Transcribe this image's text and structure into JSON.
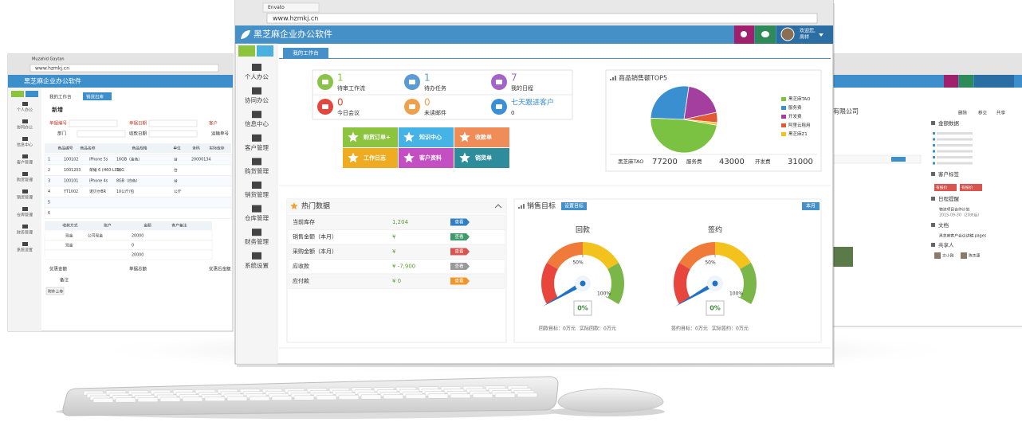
{
  "main_window": {
    "tab": "Envato",
    "url": "www.hzmkj.cn",
    "app_title": "黑芝麻企业办公软件",
    "user_greeting": "欢迎您,",
    "user_name": "周祥",
    "sidebar": [
      "个人办公",
      "协同办公",
      "信息中心",
      "客户管理",
      "购货管理",
      "销货管理",
      "仓库管理",
      "财务管理",
      "系统设置"
    ],
    "page_tab": "我的工作台",
    "stats": [
      {
        "value": 1,
        "label": "待审工作流",
        "color": "#8bc34a"
      },
      {
        "value": 1,
        "label": "待办任务",
        "color": "#5b9bd5"
      },
      {
        "value": 7,
        "label": "我的日程",
        "color": "#a463c6"
      },
      {
        "value": 0,
        "label": "今日会议",
        "color": "#e2463c"
      },
      {
        "value": 0,
        "label": "未读邮件",
        "color": "#f0a04b"
      },
      {
        "label": "七天跟进客户",
        "value": 0,
        "color": "#3a8fd6"
      }
    ],
    "shortcuts": [
      {
        "label": "购货订单+",
        "color": "#8cc43f"
      },
      {
        "label": "知识中心",
        "color": "#46b3e6"
      },
      {
        "label": "收款单",
        "color": "#f08c58"
      },
      {
        "label": "工作日志",
        "color": "#efab22"
      },
      {
        "label": "客户资料",
        "color": "#c44fc2"
      },
      {
        "label": "销货单",
        "color": "#2e8c9b"
      }
    ],
    "sales_chart": {
      "title": "商品销售额TOP5",
      "categories": [
        "黑芝麻TAO",
        "服务费",
        "开发费",
        "阿里云租用",
        "黑芝麻Z1"
      ],
      "values": [
        77200,
        43000,
        31000,
        8000,
        2000
      ],
      "colors": [
        "#7cc242",
        "#3a8fd0",
        "#a43fa0",
        "#e25a33",
        "#f1c21b"
      ]
    },
    "hot_data": {
      "title": "热门数据",
      "rows": [
        [
          "当前库存",
          "1,204"
        ],
        [
          "销售金额（本月）",
          "¥"
        ],
        [
          "采购金额（本月）",
          "¥"
        ],
        [
          "应收款",
          "¥ -7,900"
        ],
        [
          "应付款",
          "¥ 0"
        ]
      ],
      "button": "查看",
      "button_colors": [
        "#2f7fc4",
        "#3d9b6c",
        "#d9534f",
        "#999999",
        "#f0962b"
      ]
    },
    "targets": {
      "title": "销售目标",
      "setting": "设置目标",
      "period": "本月",
      "gauges": [
        {
          "title": "回款",
          "value": 0,
          "value_label": "0%",
          "ticks": [
            {
              "value": 50,
              "label": "50%"
            },
            {
              "value": 100,
              "label": "100%"
            }
          ],
          "footer": [
            "回款目标：0万元",
            "实际回款：0万元"
          ]
        },
        {
          "title": "签约",
          "value": 0,
          "value_label": "0%",
          "ticks": [
            {
              "value": 50,
              "label": "50%"
            },
            {
              "value": 100,
              "label": "100%"
            }
          ],
          "footer": [
            "签约目标：0万元",
            "实际签约：0万元"
          ]
        }
      ]
    }
  },
  "left_window": {
    "tab": "Muzahid Gaytan",
    "url": "www.hzmkj.cn",
    "app_title": "黑芝麻企业办公软件",
    "sidebar": [
      "个人办公",
      "协同办公",
      "信息中心",
      "客户管理",
      "购货管理",
      "销货管理",
      "仓库管理",
      "财务管理",
      "系统设置"
    ],
    "tabs": [
      "我的工作台",
      "销货出库"
    ],
    "new": "新增",
    "form": [
      "单据编号",
      "单据日期",
      "客户",
      "部门",
      "收款日期",
      "运输单号"
    ],
    "table_header": [
      "商品编号",
      "商品名称",
      "商品规格",
      "单位",
      "条码",
      "实际库存"
    ],
    "rows": [
      [
        "1",
        "100102",
        "iPhone 5s",
        "16GB（金色）",
        "台",
        "20000134"
      ],
      [
        "2",
        "1001203",
        "荣耀 6 (H60-L01)",
        "16G",
        "台",
        ""
      ],
      [
        "3",
        "100101",
        "iPhone 4s",
        "8GB（白色）",
        "台",
        ""
      ],
      [
        "4",
        "YT1002",
        "诺贝尔BR",
        "10公斤/包",
        "公斤",
        ""
      ],
      [
        "5",
        "",
        "",
        "",
        "",
        ""
      ],
      [
        "6",
        "",
        "",
        "",
        "",
        ""
      ]
    ],
    "pay_header": [
      "收款方式",
      "账户",
      "金额",
      "客户备注"
    ],
    "pay_rows": [
      [
        "现金",
        "公司现金",
        "20000"
      ],
      [
        "现金",
        "",
        "0"
      ],
      [
        "",
        "",
        "20000"
      ]
    ],
    "footer": [
      "优惠金额",
      "单据总额",
      "优惠后金额",
      "备注"
    ],
    "upload": "附件上传"
  },
  "right_window": {
    "company": "有限公司",
    "actions": [
      "删除",
      "移交",
      "共享"
    ],
    "sections": [
      "金额数据",
      "客户标签",
      "日程提醒",
      "文档",
      "共享人"
    ],
    "tags": [
      "有报价",
      "有报价"
    ],
    "schedule": [
      "物流项目合作计划",
      "2015-09-30（20天后）"
    ],
    "document": "黑芝麻客户会议讲稿.pages",
    "sharers": [
      "文小刚",
      "陈杰康"
    ]
  }
}
